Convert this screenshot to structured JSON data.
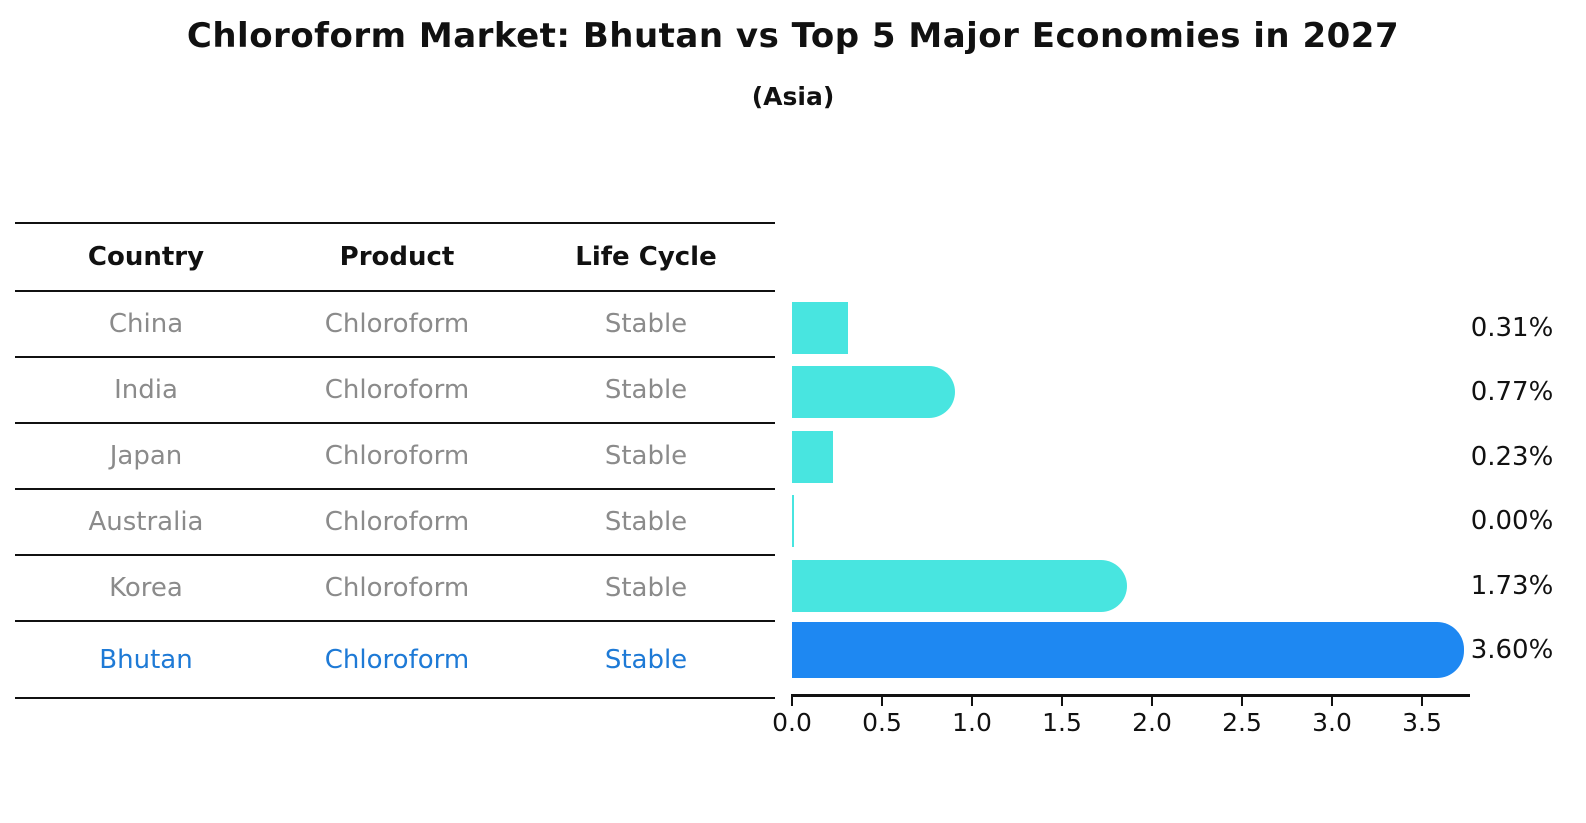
{
  "title": "Chloroform Market: Bhutan vs Top 5 Major Economies in 2027",
  "subtitle": "(Asia)",
  "table": {
    "headers": [
      "Country",
      "Product",
      "Life Cycle"
    ],
    "rows": [
      {
        "country": "China",
        "product": "Chloroform",
        "life_cycle": "Stable",
        "highlight": false
      },
      {
        "country": "India",
        "product": "Chloroform",
        "life_cycle": "Stable",
        "highlight": false
      },
      {
        "country": "Japan",
        "product": "Chloroform",
        "life_cycle": "Stable",
        "highlight": false
      },
      {
        "country": "Australia",
        "product": "Chloroform",
        "life_cycle": "Stable",
        "highlight": false
      },
      {
        "country": "Korea",
        "product": "Chloroform",
        "life_cycle": "Stable",
        "highlight": false
      },
      {
        "country": "Bhutan",
        "product": "Chloroform",
        "life_cycle": "Stable",
        "highlight": true
      }
    ]
  },
  "chart_data": {
    "type": "bar",
    "orientation": "horizontal",
    "title": "Chloroform Market: Bhutan vs Top 5 Major Economies in 2027",
    "subtitle": "(Asia)",
    "categories": [
      "China",
      "India",
      "Japan",
      "Australia",
      "Korea",
      "Bhutan"
    ],
    "values": [
      0.31,
      0.77,
      0.23,
      0.0,
      1.73,
      3.6
    ],
    "labels": [
      "0.31%",
      "0.77%",
      "0.23%",
      "0.00%",
      "1.73%",
      "3.60%"
    ],
    "bar_colors": [
      "#48E5E0",
      "#48E5E0",
      "#48E5E0",
      "#48E5E0",
      "#48E5E0",
      "#1E88F2"
    ],
    "rounded": [
      false,
      true,
      false,
      false,
      true,
      true
    ],
    "highlight_index": 5,
    "xticks": [
      "0.0",
      "0.5",
      "1.0",
      "1.5",
      "2.0",
      "2.5",
      "3.0",
      "3.5"
    ],
    "xlim": [
      0,
      3.77
    ],
    "xlabel": "",
    "ylabel": "",
    "grid": false,
    "legend": false
  },
  "colors": {
    "bar_cyan": "#48E5E0",
    "bar_blue": "#1E88F2",
    "table_text_gray": "#8b8b8b",
    "highlight_text_blue": "#1e7ad6",
    "axis_black": "#111111"
  }
}
